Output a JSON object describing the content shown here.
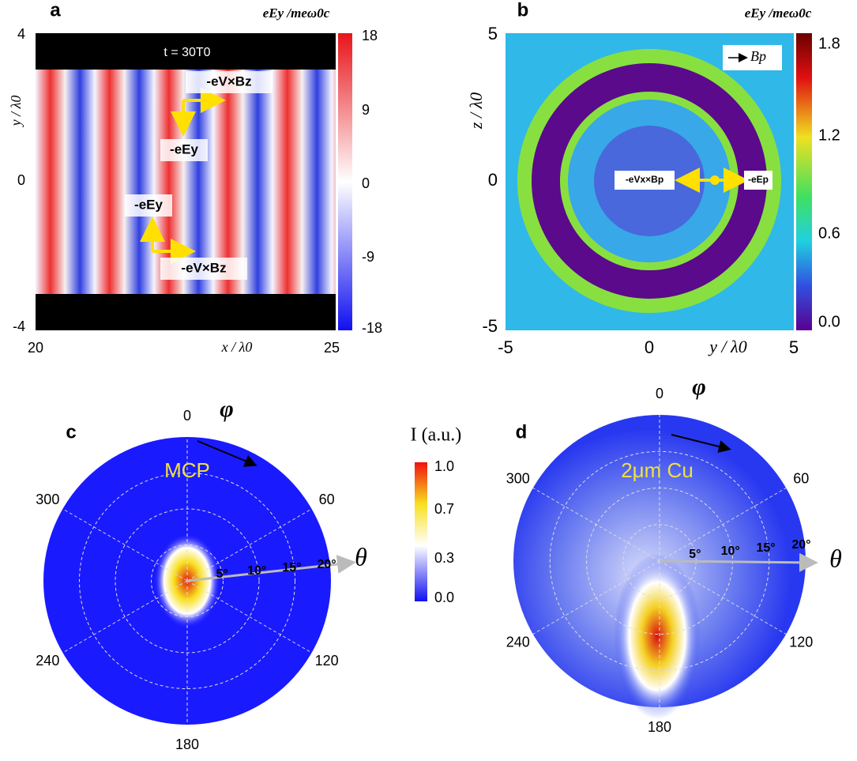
{
  "panels": [
    {
      "label": "a",
      "colorbar_title": "eEy /meω0c",
      "colorbar_ticks": [
        "18",
        "9",
        "0",
        "-9",
        "-18"
      ],
      "y_axis_label": "y / λ0",
      "x_axis_label": "x / λ0",
      "y_ticks": [
        "4",
        "0",
        "-4"
      ],
      "x_ticks": [
        "20",
        "25"
      ],
      "annotations": [
        "t = 30T0",
        "-eV×Bz",
        "-eEy",
        "-eEy",
        "-eV×Bz"
      ]
    },
    {
      "label": "b",
      "colorbar_title": "eEy /meω0c",
      "colorbar_ticks": [
        "1.8",
        "1.2",
        "0.6",
        "0.0"
      ],
      "y_axis_label": "z / λ0",
      "x_axis_label": "y / λ0",
      "y_ticks": [
        "5",
        "0",
        "-5"
      ],
      "x_ticks": [
        "-5",
        "0",
        "5"
      ],
      "legend": "Bp",
      "annotations": [
        "-eVx×Bp",
        "-eEp"
      ]
    },
    {
      "label": "c",
      "annotation": "MCP",
      "angle_labels": [
        "0",
        "60",
        "120",
        "180",
        "240",
        "300"
      ],
      "ring_labels": [
        "5°",
        "10°",
        "15°",
        "20°"
      ],
      "phi": "φ",
      "theta": "θ"
    },
    {
      "label": "d",
      "annotation": "2μm Cu",
      "angle_labels": [
        "0",
        "60",
        "120",
        "180",
        "240",
        "300"
      ],
      "ring_labels": [
        "5°",
        "10°",
        "15°",
        "20°"
      ],
      "phi": "φ",
      "theta": "θ"
    }
  ],
  "colorbar": {
    "title": "I (a.u.)",
    "ticks": [
      "1.0",
      "0.7",
      "0.3",
      "0.0"
    ]
  }
}
